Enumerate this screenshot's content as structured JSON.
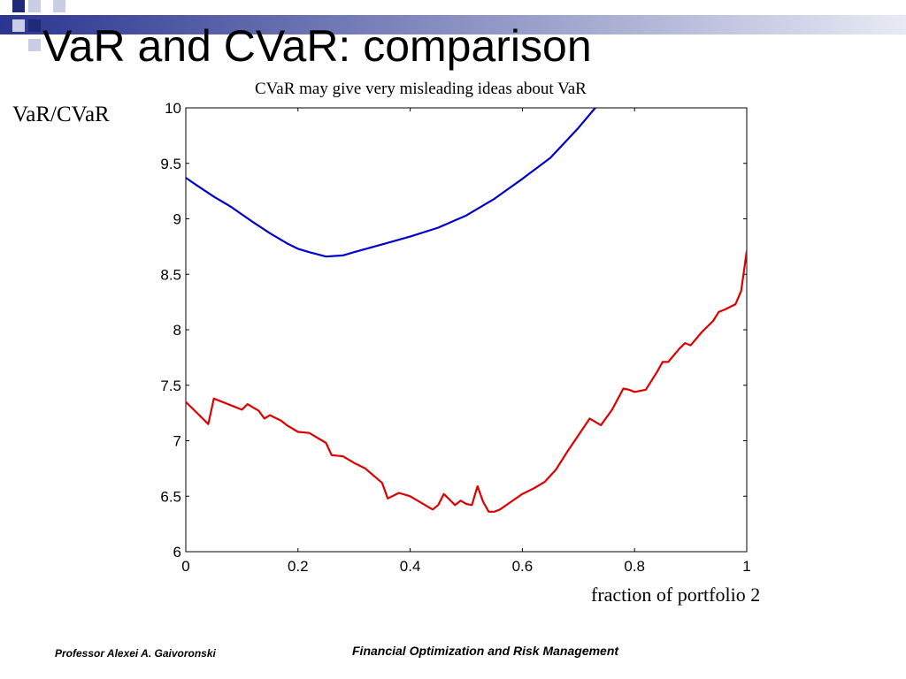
{
  "slide": {
    "title": "VaR and CVaR: comparison",
    "footer_left": "Professor Alexei A. Gaivoronski",
    "footer_right": "Financial Optimization and Risk Management"
  },
  "colors": {
    "deco_dark": "#1f2a7a",
    "deco_light": "#c9cde6",
    "deco_bar_start": "#2a3590",
    "deco_bar_end": "#e8eaf4"
  },
  "chart_data": {
    "type": "line",
    "title": "CVaR may give very misleading ideas about VaR",
    "xlabel": "fraction of portfolio 2",
    "ylabel": "VaR/CVaR",
    "xlim": [
      0,
      1
    ],
    "ylim": [
      6,
      10
    ],
    "xticks": [
      "0",
      "0.2",
      "0.4",
      "0.6",
      "0.8",
      "1"
    ],
    "yticks": [
      "6",
      "6.5",
      "7",
      "7.5",
      "8",
      "8.5",
      "9",
      "9.5",
      "10"
    ],
    "grid": false,
    "series": [
      {
        "color": "#0000cc",
        "x": [
          0,
          0.02,
          0.05,
          0.08,
          0.1,
          0.12,
          0.15,
          0.18,
          0.2,
          0.22,
          0.25,
          0.28,
          0.3,
          0.35,
          0.4,
          0.45,
          0.5,
          0.55,
          0.6,
          0.65,
          0.7,
          0.73
        ],
        "y": [
          9.37,
          9.3,
          9.2,
          9.11,
          9.04,
          8.97,
          8.87,
          8.78,
          8.73,
          8.7,
          8.66,
          8.67,
          8.7,
          8.77,
          8.84,
          8.92,
          9.03,
          9.18,
          9.36,
          9.55,
          9.82,
          10.0
        ]
      },
      {
        "color": "#dd0000",
        "x": [
          0,
          0.02,
          0.04,
          0.05,
          0.08,
          0.1,
          0.11,
          0.12,
          0.13,
          0.14,
          0.15,
          0.17,
          0.18,
          0.2,
          0.22,
          0.25,
          0.26,
          0.28,
          0.3,
          0.32,
          0.35,
          0.36,
          0.38,
          0.4,
          0.42,
          0.44,
          0.45,
          0.46,
          0.47,
          0.48,
          0.49,
          0.5,
          0.51,
          0.52,
          0.53,
          0.54,
          0.55,
          0.56,
          0.58,
          0.6,
          0.62,
          0.64,
          0.66,
          0.68,
          0.7,
          0.72,
          0.74,
          0.76,
          0.78,
          0.79,
          0.8,
          0.82,
          0.84,
          0.85,
          0.86,
          0.88,
          0.89,
          0.9,
          0.92,
          0.94,
          0.95,
          0.96,
          0.98,
          0.99,
          1.0
        ],
        "y": [
          7.35,
          7.25,
          7.15,
          7.38,
          7.32,
          7.28,
          7.33,
          7.3,
          7.27,
          7.2,
          7.23,
          7.18,
          7.14,
          7.08,
          7.07,
          6.98,
          6.87,
          6.86,
          6.8,
          6.75,
          6.62,
          6.48,
          6.53,
          6.5,
          6.44,
          6.38,
          6.42,
          6.52,
          6.47,
          6.42,
          6.46,
          6.43,
          6.42,
          6.59,
          6.45,
          6.36,
          6.36,
          6.38,
          6.45,
          6.52,
          6.57,
          6.63,
          6.74,
          6.9,
          7.05,
          7.2,
          7.14,
          7.28,
          7.47,
          7.46,
          7.44,
          7.46,
          7.62,
          7.71,
          7.71,
          7.83,
          7.88,
          7.86,
          7.98,
          8.08,
          8.16,
          8.18,
          8.23,
          8.35,
          8.71
        ]
      }
    ]
  }
}
